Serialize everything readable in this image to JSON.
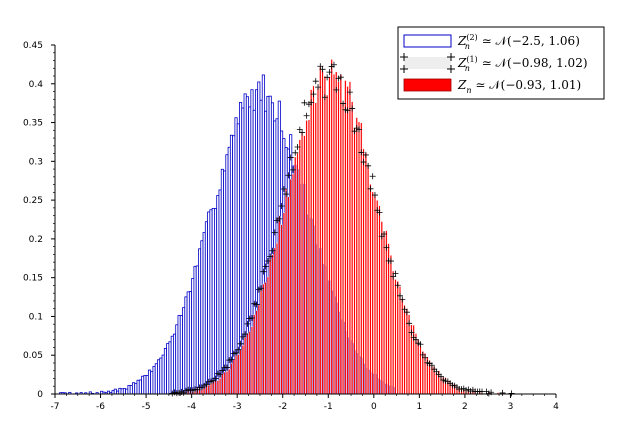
{
  "chart_data": {
    "type": "bar",
    "xlim": [
      -7,
      4
    ],
    "ylim": [
      0,
      0.45
    ],
    "xticks": [
      "-7",
      "-6",
      "-5",
      "-4",
      "-3",
      "-2",
      "-1",
      "0",
      "1",
      "2",
      "3",
      "4"
    ],
    "yticks": [
      "0",
      "0.05",
      "0.1",
      "0.15",
      "0.2",
      "0.25",
      "0.3",
      "0.35",
      "0.4",
      "0.45"
    ],
    "grid": false,
    "legend_position": "top-right",
    "series": [
      {
        "name": "Z_n^(2) ≃ N(−2.5, 1.06)",
        "style": "histogram",
        "color": "#0000c8",
        "mean": -2.5,
        "std": 1.06,
        "x_range": [
          -6.9,
          0.4
        ],
        "bin_width": 0.05,
        "peak": 0.39
      },
      {
        "name": "Z_n^(1) ≃ N(−0.98, 1.02)",
        "style": "plus-markers",
        "color": "#000000",
        "mean": -0.98,
        "std": 1.02,
        "x_range": [
          -4.5,
          3.0
        ],
        "bin_width": 0.05,
        "peak": 0.41
      },
      {
        "name": "Z_n ≃ N(−0.93, 1.01)",
        "style": "histogram",
        "color": "#ff0000",
        "mean": -0.93,
        "std": 1.01,
        "x_range": [
          -4.5,
          3.0
        ],
        "bin_width": 0.05,
        "peak": 0.41
      }
    ],
    "legend": [
      {
        "main": "Z",
        "sub": "n",
        "sup": "(2)",
        "rest": "≃ 𝒩(−2.5, 1.06)"
      },
      {
        "main": "Z",
        "sub": "n",
        "sup": "(1)",
        "rest": "≃ 𝒩(−0.98, 1.02)"
      },
      {
        "main": "Z",
        "sub": "n",
        "sup": "",
        "rest": "≃ 𝒩(−0.93, 1.01)"
      }
    ]
  }
}
